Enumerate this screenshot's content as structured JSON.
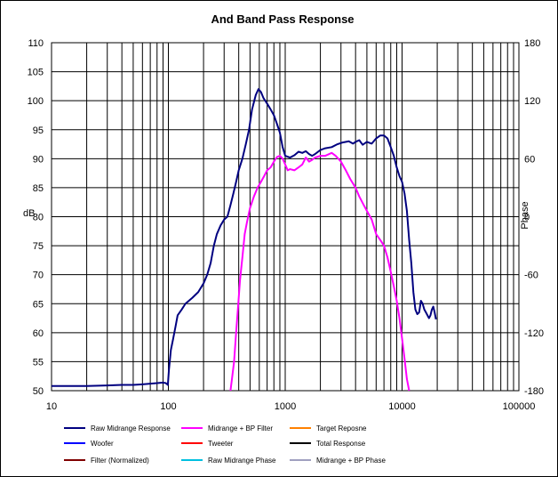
{
  "chart_data": {
    "type": "line",
    "title": "And Band Pass Response",
    "xlabel": "",
    "ylabel": "dB",
    "y2label": "Phase",
    "x_scale": "log",
    "xlim": [
      10,
      100000
    ],
    "ylim": [
      50,
      110
    ],
    "y2lim": [
      -180,
      180
    ],
    "x_ticks": [
      "10",
      "100",
      "1000",
      "10000",
      "100000"
    ],
    "y_ticks": [
      "50",
      "55",
      "60",
      "65",
      "70",
      "75",
      "80",
      "85",
      "90",
      "95",
      "100",
      "105",
      "110"
    ],
    "y2_ticks": [
      "-180",
      "-120",
      "-60",
      "0",
      "60",
      "120",
      "180"
    ],
    "grid": true,
    "legend_position": "bottom",
    "legend": [
      {
        "name": "Raw Midrange Response",
        "color": "#000080"
      },
      {
        "name": "Midrange + BP Filter",
        "color": "#ff00ff"
      },
      {
        "name": "Target Reposne",
        "color": "#ff8000"
      },
      {
        "name": "Woofer",
        "color": "#0000ff"
      },
      {
        "name": "Tweeter",
        "color": "#ff0000"
      },
      {
        "name": "Total Response",
        "color": "#000000"
      },
      {
        "name": "Filter (Normalized)",
        "color": "#800000"
      },
      {
        "name": "Raw Midrange Phase",
        "color": "#00c0e0"
      },
      {
        "name": "Midrange + BP Phase",
        "color": "#a0a0c0"
      }
    ],
    "series": [
      {
        "name": "Raw Midrange Response",
        "color": "#000080",
        "points": [
          [
            10,
            50.8
          ],
          [
            20,
            50.8
          ],
          [
            30,
            50.9
          ],
          [
            40,
            51.0
          ],
          [
            50,
            51.0
          ],
          [
            60,
            51.1
          ],
          [
            70,
            51.2
          ],
          [
            80,
            51.3
          ],
          [
            90,
            51.4
          ],
          [
            95,
            51.3
          ],
          [
            99,
            51.0
          ],
          [
            101,
            53.5
          ],
          [
            105,
            57.0
          ],
          [
            110,
            59.0
          ],
          [
            115,
            61.0
          ],
          [
            120,
            63.0
          ],
          [
            130,
            64.0
          ],
          [
            140,
            65.0
          ],
          [
            160,
            66.0
          ],
          [
            180,
            67.0
          ],
          [
            200,
            68.5
          ],
          [
            215,
            70.0
          ],
          [
            230,
            72.0
          ],
          [
            245,
            75.0
          ],
          [
            260,
            77.0
          ],
          [
            280,
            78.5
          ],
          [
            300,
            79.5
          ],
          [
            320,
            80.0
          ],
          [
            340,
            82.0
          ],
          [
            360,
            84.0
          ],
          [
            380,
            86.0
          ],
          [
            400,
            88.0
          ],
          [
            430,
            90.0
          ],
          [
            460,
            92.5
          ],
          [
            490,
            95.0
          ],
          [
            520,
            98.5
          ],
          [
            560,
            101.0
          ],
          [
            590,
            102.0
          ],
          [
            620,
            101.5
          ],
          [
            650,
            100.5
          ],
          [
            700,
            99.5
          ],
          [
            750,
            98.5
          ],
          [
            800,
            97.5
          ],
          [
            850,
            96.0
          ],
          [
            900,
            94.5
          ],
          [
            950,
            92.0
          ],
          [
            1000,
            90.5
          ],
          [
            1100,
            90.2
          ],
          [
            1200,
            90.6
          ],
          [
            1300,
            91.2
          ],
          [
            1400,
            91.0
          ],
          [
            1500,
            91.3
          ],
          [
            1600,
            90.8
          ],
          [
            1700,
            90.5
          ],
          [
            1800,
            90.8
          ],
          [
            2000,
            91.5
          ],
          [
            2200,
            91.8
          ],
          [
            2500,
            92.0
          ],
          [
            2800,
            92.5
          ],
          [
            3100,
            92.8
          ],
          [
            3500,
            93.0
          ],
          [
            3800,
            92.6
          ],
          [
            4000,
            92.9
          ],
          [
            4300,
            93.2
          ],
          [
            4600,
            92.4
          ],
          [
            5000,
            92.9
          ],
          [
            5500,
            92.6
          ],
          [
            6000,
            93.5
          ],
          [
            6500,
            94.0
          ],
          [
            7000,
            94.0
          ],
          [
            7500,
            93.5
          ],
          [
            8000,
            92.0
          ],
          [
            8500,
            90.5
          ],
          [
            9000,
            88.5
          ],
          [
            9500,
            87.0
          ],
          [
            10000,
            86.0
          ],
          [
            10500,
            84.0
          ],
          [
            11000,
            81.0
          ],
          [
            11500,
            76.0
          ],
          [
            12000,
            72.0
          ],
          [
            12500,
            67.0
          ],
          [
            13000,
            64.0
          ],
          [
            13500,
            63.2
          ],
          [
            14000,
            63.5
          ],
          [
            14500,
            65.5
          ],
          [
            15000,
            65.0
          ],
          [
            15500,
            64.0
          ],
          [
            16000,
            63.5
          ],
          [
            17000,
            62.5
          ],
          [
            17500,
            63.0
          ],
          [
            18000,
            64.0
          ],
          [
            18500,
            64.5
          ],
          [
            19000,
            63.5
          ],
          [
            19500,
            62.3
          ]
        ]
      },
      {
        "name": "Midrange + BP Filter",
        "color": "#ff00ff",
        "points": [
          [
            340,
            50.0
          ],
          [
            350,
            52.0
          ],
          [
            365,
            55.0
          ],
          [
            380,
            60.0
          ],
          [
            395,
            64.5
          ],
          [
            410,
            69.0
          ],
          [
            430,
            73.0
          ],
          [
            450,
            77.0
          ],
          [
            470,
            79.0
          ],
          [
            500,
            81.5
          ],
          [
            540,
            83.5
          ],
          [
            580,
            85.0
          ],
          [
            620,
            86.0
          ],
          [
            660,
            87.0
          ],
          [
            700,
            88.0
          ],
          [
            750,
            88.5
          ],
          [
            800,
            89.5
          ],
          [
            850,
            90.3
          ],
          [
            900,
            90.5
          ],
          [
            950,
            90.0
          ],
          [
            1000,
            89.0
          ],
          [
            1050,
            88.0
          ],
          [
            1100,
            88.2
          ],
          [
            1200,
            88.0
          ],
          [
            1300,
            88.5
          ],
          [
            1400,
            89.0
          ],
          [
            1500,
            90.2
          ],
          [
            1600,
            89.5
          ],
          [
            1700,
            89.8
          ],
          [
            1800,
            90.2
          ],
          [
            2000,
            90.5
          ],
          [
            2200,
            90.5
          ],
          [
            2500,
            91.0
          ],
          [
            2700,
            90.5
          ],
          [
            3000,
            89.5
          ],
          [
            3300,
            88.0
          ],
          [
            3600,
            86.5
          ],
          [
            4000,
            85.0
          ],
          [
            4300,
            83.5
          ],
          [
            4700,
            82.0
          ],
          [
            5000,
            81.0
          ],
          [
            5500,
            79.5
          ],
          [
            6000,
            77.0
          ],
          [
            6500,
            76.0
          ],
          [
            7000,
            75.0
          ],
          [
            7500,
            73.0
          ],
          [
            8000,
            70.5
          ],
          [
            8500,
            68.0
          ],
          [
            9000,
            65.5
          ],
          [
            9500,
            62.5
          ],
          [
            10000,
            59.0
          ],
          [
            10500,
            55.5
          ],
          [
            11000,
            52.0
          ],
          [
            11500,
            50.0
          ]
        ]
      }
    ]
  }
}
